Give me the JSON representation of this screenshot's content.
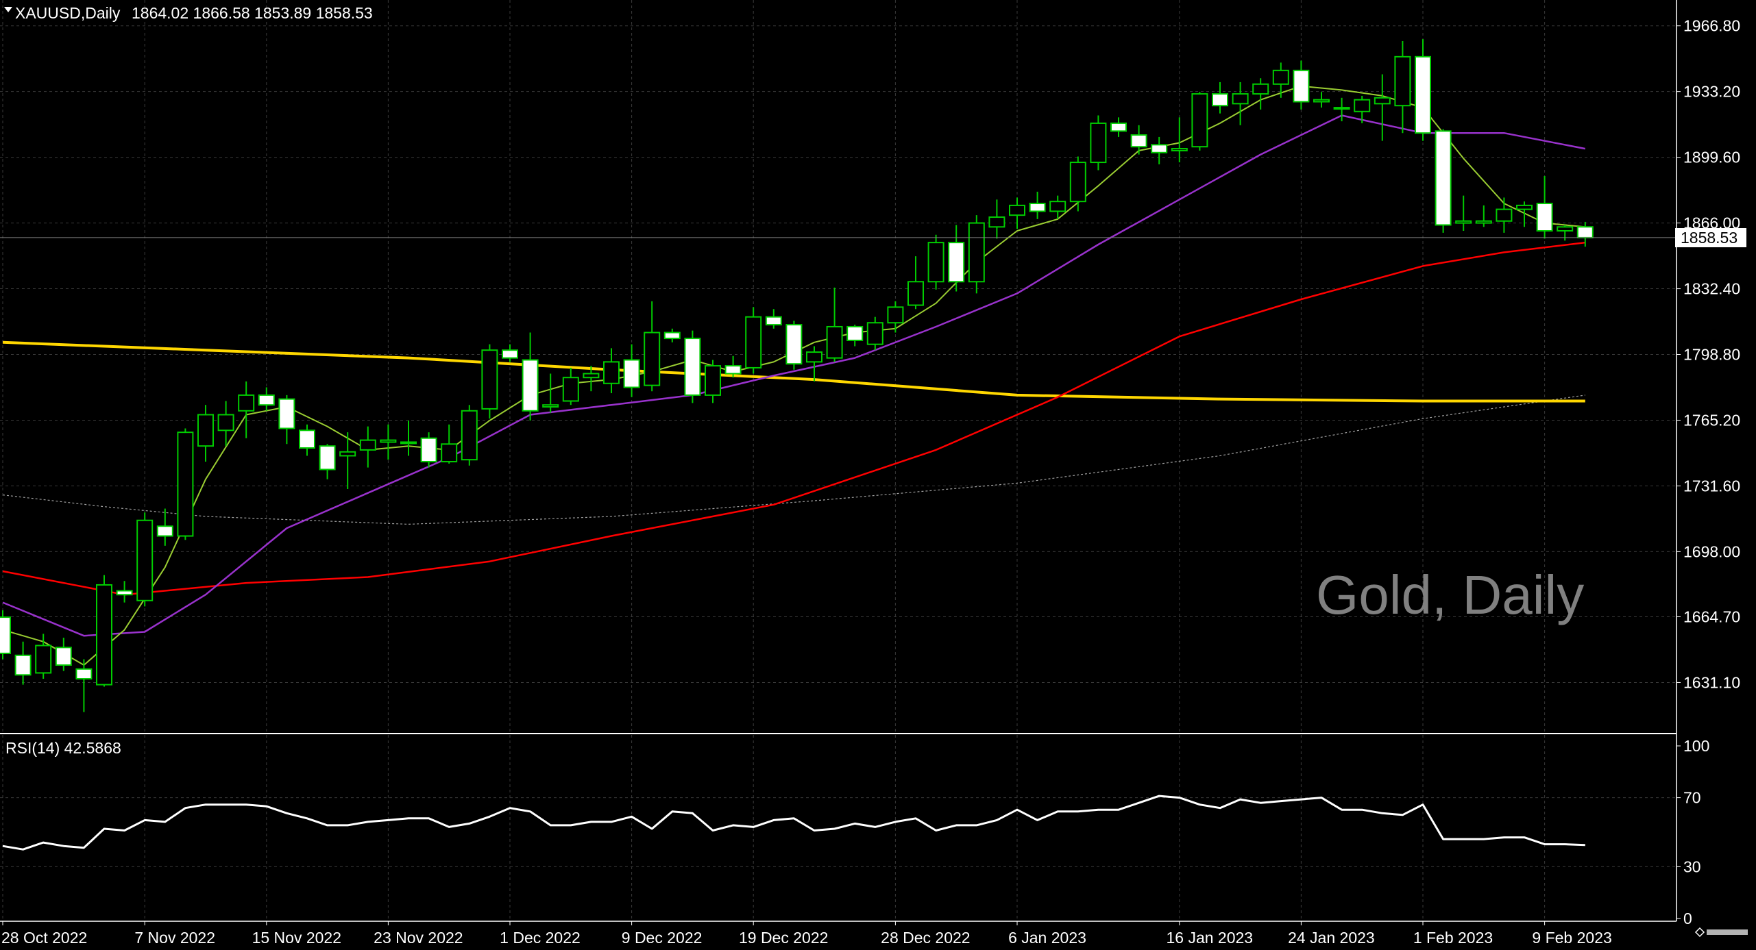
{
  "header": {
    "symbol": "XAUUSD,Daily",
    "ohlc": "1864.02 1866.58 1853.89 1858.53"
  },
  "watermark": "Gold, Daily",
  "price_tag": "1858.53",
  "rsi_header": "RSI(14) 42.5868",
  "colors": {
    "background": "#000000",
    "grid": "#3a3a3a",
    "bull_candle": "#000000",
    "bear_candle": "#ffffff",
    "candle_wick": "#00cc00",
    "ma_fast": "#9acd32",
    "ma_mid": "#9932cc",
    "ma_slow": "#ff0000",
    "ma_long": "#ffd700",
    "ma_longest": "#a0a0a0",
    "rsi": "#ffffff"
  },
  "chart_data": [
    {
      "type": "candlestick",
      "symbol": "XAUUSD",
      "timeframe": "Daily",
      "ylim": [
        1605,
        1980
      ],
      "y_ticks": [
        "1966.80",
        "1933.20",
        "1899.60",
        "1866.00",
        "1832.40",
        "1798.80",
        "1765.20",
        "1731.60",
        "1698.00",
        "1664.70",
        "1631.10"
      ],
      "x_ticks": [
        "28 Oct 2022",
        "7 Nov 2022",
        "15 Nov 2022",
        "23 Nov 2022",
        "1 Dec 2022",
        "9 Dec 2022",
        "19 Dec 2022",
        "28 Dec 2022",
        "6 Jan 2023",
        "16 Jan 2023",
        "24 Jan 2023",
        "1 Feb 2023",
        "9 Feb 2023"
      ],
      "x_tick_index": [
        0,
        7,
        13,
        19,
        25,
        31,
        37,
        44,
        50,
        58,
        64,
        70,
        76
      ],
      "candles": [
        [
          1664.5,
          1668.0,
          1643.0,
          1646.0
        ],
        [
          1645.0,
          1652.0,
          1630.0,
          1635.0
        ],
        [
          1636.0,
          1656.0,
          1633.0,
          1650.0
        ],
        [
          1649.0,
          1654.0,
          1637.0,
          1640.0
        ],
        [
          1638.0,
          1643.0,
          1616.0,
          1633.0
        ],
        [
          1630.0,
          1686.0,
          1629.0,
          1681.0
        ],
        [
          1678.0,
          1683.0,
          1672.0,
          1676.0
        ],
        [
          1673.0,
          1718.0,
          1670.0,
          1714.0
        ],
        [
          1711.0,
          1720.0,
          1701.0,
          1706.0
        ],
        [
          1706.0,
          1761.0,
          1704.0,
          1759.0
        ],
        [
          1752.0,
          1773.0,
          1744.0,
          1768.0
        ],
        [
          1760.0,
          1775.0,
          1752.0,
          1768.0
        ],
        [
          1770.0,
          1785.0,
          1756.0,
          1778.0
        ],
        [
          1778.0,
          1782.0,
          1770.0,
          1773.0
        ],
        [
          1776.0,
          1778.0,
          1753.0,
          1761.0
        ],
        [
          1760.0,
          1763.0,
          1747.0,
          1751.0
        ],
        [
          1752.0,
          1753.0,
          1735.0,
          1740.0
        ],
        [
          1747.0,
          1759.0,
          1730.0,
          1749.0
        ],
        [
          1750.0,
          1762.0,
          1741.0,
          1755.0
        ],
        [
          1754.0,
          1763.0,
          1745.0,
          1755.0
        ],
        [
          1754.0,
          1765.0,
          1747.0,
          1754.0
        ],
        [
          1756.0,
          1759.0,
          1741.0,
          1744.0
        ],
        [
          1744.0,
          1763.0,
          1743.0,
          1753.0
        ],
        [
          1745.0,
          1773.0,
          1742.0,
          1770.0
        ],
        [
          1771.0,
          1804.0,
          1766.0,
          1801.0
        ],
        [
          1801.0,
          1804.0,
          1795.0,
          1797.0
        ],
        [
          1796.0,
          1810.0,
          1765.0,
          1770.0
        ],
        [
          1772.0,
          1789.0,
          1769.0,
          1773.0
        ],
        [
          1775.0,
          1792.0,
          1773.0,
          1787.0
        ],
        [
          1787.0,
          1793.0,
          1780.0,
          1789.0
        ],
        [
          1784.0,
          1802.0,
          1779.0,
          1795.0
        ],
        [
          1796.0,
          1804.0,
          1777.0,
          1782.0
        ],
        [
          1783.0,
          1826.0,
          1780.0,
          1810.0
        ],
        [
          1810.0,
          1812.0,
          1805.0,
          1807.0
        ],
        [
          1807.0,
          1811.0,
          1774.0,
          1778.0
        ],
        [
          1778.0,
          1796.0,
          1774.0,
          1793.0
        ],
        [
          1793.0,
          1798.0,
          1787.0,
          1789.0
        ],
        [
          1792.0,
          1823.0,
          1789.0,
          1818.0
        ],
        [
          1818.0,
          1822.0,
          1812.0,
          1814.0
        ],
        [
          1814.0,
          1816.0,
          1791.0,
          1794.0
        ],
        [
          1795.0,
          1803.0,
          1785.0,
          1800.0
        ],
        [
          1797.0,
          1833.0,
          1795.0,
          1813.0
        ],
        [
          1813.0,
          1814.0,
          1803.0,
          1806.0
        ],
        [
          1804.0,
          1818.0,
          1801.0,
          1815.0
        ],
        [
          1815.0,
          1826.0,
          1810.0,
          1823.0
        ],
        [
          1824.0,
          1849.0,
          1822.0,
          1836.0
        ],
        [
          1836.0,
          1860.0,
          1832.0,
          1856.0
        ],
        [
          1856.0,
          1865.0,
          1831.0,
          1836.0
        ],
        [
          1836.0,
          1870.0,
          1830.0,
          1866.0
        ],
        [
          1864.0,
          1878.0,
          1858.0,
          1869.0
        ],
        [
          1870.0,
          1879.0,
          1863.0,
          1875.0
        ],
        [
          1876.0,
          1882.0,
          1868.0,
          1872.0
        ],
        [
          1872.0,
          1880.0,
          1868.0,
          1877.0
        ],
        [
          1877.0,
          1900.0,
          1872.0,
          1897.0
        ],
        [
          1897.0,
          1921.0,
          1893.0,
          1917.0
        ],
        [
          1917.0,
          1920.0,
          1910.0,
          1913.0
        ],
        [
          1911.0,
          1916.0,
          1901.0,
          1905.0
        ],
        [
          1906.0,
          1910.0,
          1896.0,
          1902.0
        ],
        [
          1903.0,
          1920.0,
          1897.0,
          1904.0
        ],
        [
          1905.0,
          1933.0,
          1903.0,
          1932.0
        ],
        [
          1932.0,
          1938.0,
          1922.0,
          1926.0
        ],
        [
          1927.0,
          1938.0,
          1916.0,
          1932.0
        ],
        [
          1932.0,
          1940.0,
          1924.0,
          1937.0
        ],
        [
          1937.0,
          1948.0,
          1930.0,
          1944.0
        ],
        [
          1944.0,
          1949.0,
          1924.0,
          1928.0
        ],
        [
          1928.0,
          1933.0,
          1925.0,
          1929.0
        ],
        [
          1925.0,
          1930.0,
          1918.0,
          1925.0
        ],
        [
          1923.0,
          1931.0,
          1917.0,
          1929.0
        ],
        [
          1927.0,
          1942.0,
          1908.0,
          1930.0
        ],
        [
          1926.0,
          1959.0,
          1912.0,
          1951.0
        ],
        [
          1951.0,
          1960.0,
          1908.0,
          1912.0
        ],
        [
          1913.0,
          1914.0,
          1861.0,
          1865.0
        ],
        [
          1866.0,
          1880.0,
          1862.0,
          1867.0
        ],
        [
          1866.0,
          1875.0,
          1864.0,
          1867.0
        ],
        [
          1867.0,
          1879.0,
          1861.0,
          1873.0
        ],
        [
          1873.0,
          1877.0,
          1864.0,
          1875.0
        ],
        [
          1876.0,
          1890.0,
          1858.0,
          1862.0
        ],
        [
          1862.0,
          1865.0,
          1857.0,
          1864.0
        ],
        [
          1864.02,
          1866.58,
          1853.89,
          1858.53
        ]
      ],
      "ma_fast": [
        [
          0,
          1658
        ],
        [
          2,
          1652
        ],
        [
          4,
          1640
        ],
        [
          6,
          1658
        ],
        [
          8,
          1690
        ],
        [
          10,
          1735
        ],
        [
          12,
          1768
        ],
        [
          14,
          1772
        ],
        [
          16,
          1762
        ],
        [
          18,
          1750
        ],
        [
          20,
          1752
        ],
        [
          22,
          1750
        ],
        [
          24,
          1765
        ],
        [
          26,
          1778
        ],
        [
          28,
          1784
        ],
        [
          30,
          1786
        ],
        [
          32,
          1790
        ],
        [
          34,
          1796
        ],
        [
          36,
          1790
        ],
        [
          38,
          1795
        ],
        [
          40,
          1805
        ],
        [
          42,
          1810
        ],
        [
          44,
          1812
        ],
        [
          46,
          1825
        ],
        [
          48,
          1846
        ],
        [
          50,
          1862
        ],
        [
          52,
          1868
        ],
        [
          54,
          1885
        ],
        [
          56,
          1903
        ],
        [
          58,
          1907
        ],
        [
          60,
          1917
        ],
        [
          62,
          1929
        ],
        [
          64,
          1936
        ],
        [
          66,
          1934
        ],
        [
          68,
          1931
        ],
        [
          70,
          1925
        ],
        [
          72,
          1899
        ],
        [
          74,
          1876
        ],
        [
          76,
          1866
        ],
        [
          78,
          1864
        ]
      ],
      "ma_mid": [
        [
          0,
          1672
        ],
        [
          4,
          1655
        ],
        [
          7,
          1657
        ],
        [
          10,
          1676
        ],
        [
          14,
          1710
        ],
        [
          18,
          1728
        ],
        [
          22,
          1746
        ],
        [
          26,
          1768
        ],
        [
          30,
          1773
        ],
        [
          34,
          1778
        ],
        [
          38,
          1788
        ],
        [
          42,
          1797
        ],
        [
          46,
          1813
        ],
        [
          50,
          1830
        ],
        [
          54,
          1855
        ],
        [
          58,
          1878
        ],
        [
          62,
          1901
        ],
        [
          66,
          1921
        ],
        [
          70,
          1912
        ],
        [
          74,
          1912
        ],
        [
          78,
          1904
        ]
      ],
      "ma_slow": [
        [
          0,
          1688
        ],
        [
          6,
          1676
        ],
        [
          12,
          1682
        ],
        [
          18,
          1685
        ],
        [
          24,
          1693
        ],
        [
          30,
          1706
        ],
        [
          38,
          1722
        ],
        [
          46,
          1750
        ],
        [
          52,
          1777
        ],
        [
          58,
          1808
        ],
        [
          64,
          1827
        ],
        [
          70,
          1844
        ],
        [
          74,
          1851
        ],
        [
          78,
          1856
        ]
      ],
      "ma_long": [
        [
          0,
          1805
        ],
        [
          10,
          1801
        ],
        [
          20,
          1797
        ],
        [
          30,
          1791
        ],
        [
          40,
          1786
        ],
        [
          50,
          1778
        ],
        [
          60,
          1776
        ],
        [
          70,
          1775
        ],
        [
          78,
          1775
        ]
      ],
      "ma_longest": [
        [
          0,
          1727
        ],
        [
          5,
          1721
        ],
        [
          10,
          1716
        ],
        [
          20,
          1712
        ],
        [
          30,
          1716
        ],
        [
          40,
          1724
        ],
        [
          50,
          1733
        ],
        [
          60,
          1747
        ],
        [
          70,
          1766
        ],
        [
          78,
          1778
        ]
      ]
    },
    {
      "type": "line",
      "title": "RSI(14) 42.5868",
      "ylim": [
        0,
        100
      ],
      "y_ticks": [
        "100",
        "70",
        "30",
        "0"
      ],
      "values": [
        42,
        40,
        44,
        42,
        41,
        52,
        51,
        57,
        56,
        64,
        66,
        66,
        66,
        65,
        61,
        58,
        54,
        54,
        56,
        57,
        58,
        58,
        53,
        55,
        59,
        64,
        62,
        54,
        54,
        56,
        56,
        59,
        52,
        62,
        61,
        51,
        54,
        53,
        57,
        58,
        51,
        52,
        55,
        53,
        56,
        58,
        51,
        54,
        54,
        57,
        63,
        57,
        62,
        62,
        63,
        63,
        67,
        71,
        70,
        66,
        64,
        69,
        67,
        68,
        69,
        70,
        63,
        63,
        61,
        60,
        66,
        46,
        46,
        46,
        47,
        47,
        43,
        43,
        42.59
      ]
    }
  ]
}
